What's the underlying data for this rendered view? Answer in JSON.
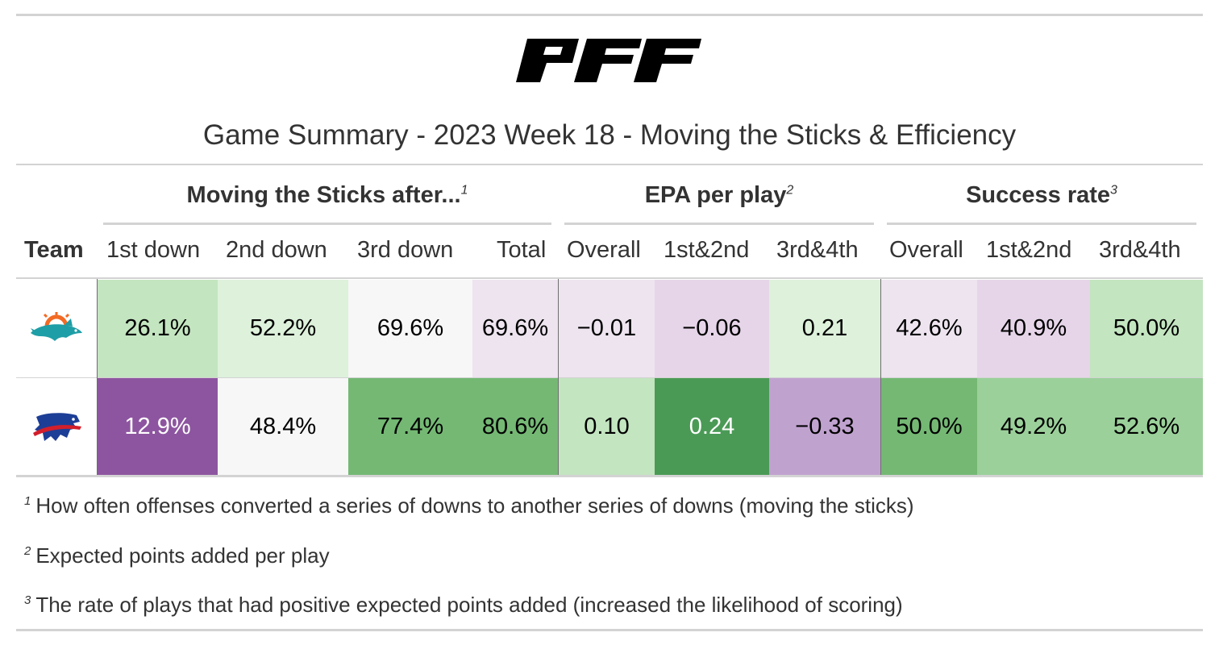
{
  "logo": {
    "text": "PFF"
  },
  "title": "Game Summary - 2023 Week 18 - Moving the Sticks & Efficiency",
  "spanners": [
    {
      "label": "Moving the Sticks after...",
      "mark": "1"
    },
    {
      "label": "EPA per play",
      "mark": "2"
    },
    {
      "label": "Success rate",
      "mark": "3"
    }
  ],
  "columns": {
    "team": "Team",
    "sticks": [
      "1st down",
      "2nd down",
      "3rd down",
      "Total"
    ],
    "epa": [
      "Overall",
      "1st&2nd",
      "3rd&4th"
    ],
    "success": [
      "Overall",
      "1st&2nd",
      "3rd&4th"
    ]
  },
  "rows": [
    {
      "team_icon": "dolphins-logo-icon",
      "values": [
        "26.1%",
        "52.2%",
        "69.6%",
        "69.6%",
        "−0.01",
        "−0.06",
        "0.21",
        "42.6%",
        "40.9%",
        "50.0%"
      ],
      "colors": [
        "#c3e5c0",
        "#ddf1db",
        "#f7f7f7",
        "#ede4ef",
        "#ede4ef",
        "#e6d5e9",
        "#ddf1db",
        "#ede4ef",
        "#e6d5e9",
        "#c3e5c0"
      ],
      "text_colors": [
        "#000000",
        "#000000",
        "#000000",
        "#000000",
        "#000000",
        "#000000",
        "#000000",
        "#000000",
        "#000000",
        "#000000"
      ]
    },
    {
      "team_icon": "bills-logo-icon",
      "values": [
        "12.9%",
        "48.4%",
        "77.4%",
        "80.6%",
        "0.10",
        "0.24",
        "−0.33",
        "50.0%",
        "49.2%",
        "52.6%"
      ],
      "colors": [
        "#8d55a0",
        "#f7f7f7",
        "#74b874",
        "#74b874",
        "#c3e5c0",
        "#4a9a56",
        "#c0a2cf",
        "#74b874",
        "#9bd09a",
        "#9bd09a"
      ],
      "text_colors": [
        "#ffffff",
        "#000000",
        "#000000",
        "#000000",
        "#000000",
        "#ffffff",
        "#000000",
        "#000000",
        "#000000",
        "#000000"
      ]
    }
  ],
  "footnotes": [
    {
      "mark": "1",
      "text": "How often offenses converted a series of downs to another series of downs (moving the sticks)"
    },
    {
      "mark": "2",
      "text": "Expected points added per play"
    },
    {
      "mark": "3",
      "text": "The rate of plays that had positive expected points added (increased the likelihood of scoring)"
    }
  ],
  "colors": {
    "rule": "#d3d3d3",
    "text": "#333333",
    "dolphins_aqua": "#1e9ea6",
    "dolphins_orange": "#f26a24",
    "bills_blue": "#1d3e96",
    "bills_red": "#d21f2b"
  }
}
